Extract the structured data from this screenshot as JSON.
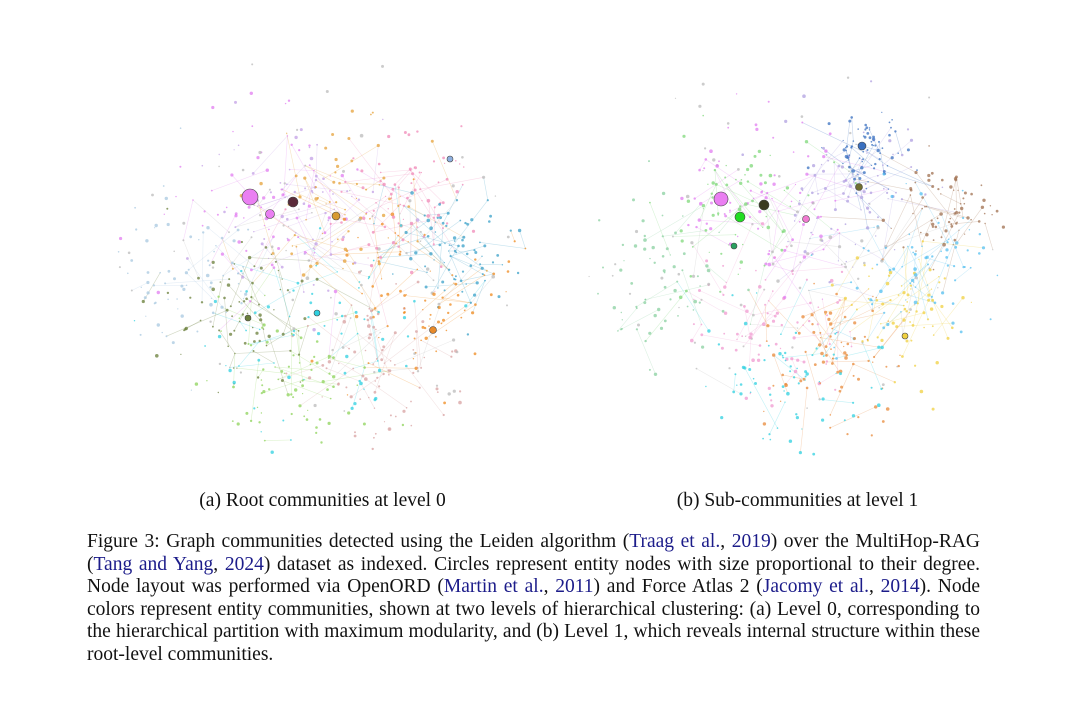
{
  "figure": {
    "subcaptions": [
      "(a) Root communities at level 0",
      "(b) Sub-communities at level 1"
    ],
    "caption": [
      {
        "text": "Figure 3:  Graph communities detected using the Leiden algorithm ("
      },
      {
        "text": "Traag et al.",
        "cite": true
      },
      {
        "text": ", "
      },
      {
        "text": "2019",
        "cite": true
      },
      {
        "text": ") over the MultiHop-RAG ("
      },
      {
        "text": "Tang and Yang",
        "cite": true
      },
      {
        "text": ", "
      },
      {
        "text": "2024",
        "cite": true
      },
      {
        "text": ") dataset as indexed. Circles represent entity nodes with size proportional to their degree.  Node layout was performed via OpenORD ("
      },
      {
        "text": "Martin et al.",
        "cite": true
      },
      {
        "text": ", "
      },
      {
        "text": "2011",
        "cite": true
      },
      {
        "text": ") and Force Atlas 2 ("
      },
      {
        "text": "Jacomy et al.",
        "cite": true
      },
      {
        "text": ", "
      },
      {
        "text": "2014",
        "cite": true
      },
      {
        "text": "). Node colors represent entity communities, shown at two levels of hierarchical clustering: (a) Level 0, corresponding to the hierarchical partition with maximum modularity, and (b) Level 1, which reveals internal structure within these root-level communities."
      }
    ]
  }
}
